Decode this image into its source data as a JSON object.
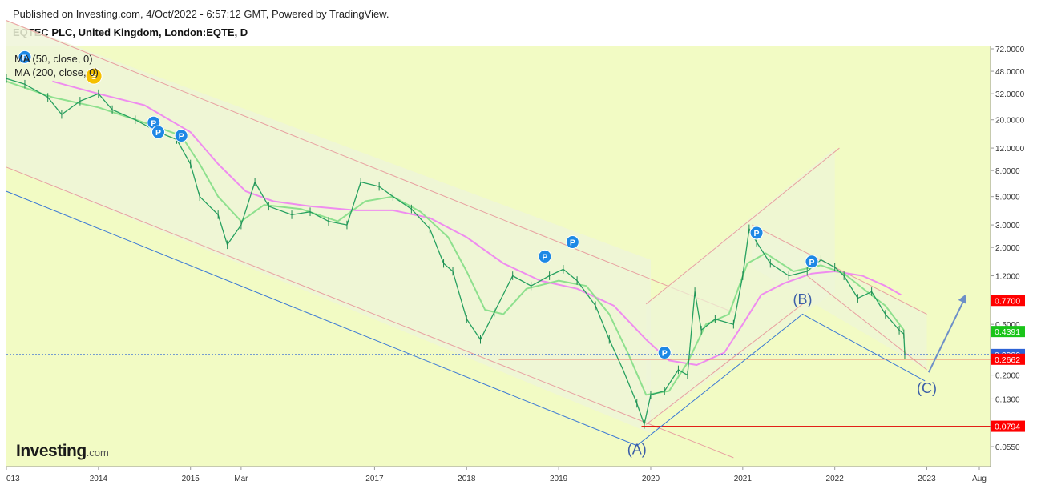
{
  "header": {
    "published": "Published on Investing.com, 4/Oct/2022 - 6:57:12 GMT, Powered by TradingView.",
    "title": "EQTEC PLC, United Kingdom, London:EQTE, D"
  },
  "logo": {
    "main": "Investing",
    "suffix": ".com"
  },
  "indicators": [
    "MA (50, close, 0)",
    "MA (200, close, 0)"
  ],
  "chart_data": {
    "type": "line",
    "scale": "log",
    "ylim": [
      0.045,
      75
    ],
    "x_ticks": [
      {
        "t": 2013.0,
        "label": "013"
      },
      {
        "t": 2014.0,
        "label": "2014"
      },
      {
        "t": 2015.0,
        "label": "2015"
      },
      {
        "t": 2015.55,
        "label": "Mar"
      },
      {
        "t": 2017.0,
        "label": "2017"
      },
      {
        "t": 2018.0,
        "label": "2018"
      },
      {
        "t": 2019.0,
        "label": "2019"
      },
      {
        "t": 2020.0,
        "label": "2020"
      },
      {
        "t": 2021.0,
        "label": "2021"
      },
      {
        "t": 2022.0,
        "label": "2022"
      },
      {
        "t": 2023.0,
        "label": "2023"
      },
      {
        "t": 2023.57,
        "label": "Aug"
      }
    ],
    "y_ticks": [
      {
        "v": 72,
        "label": "72.0000"
      },
      {
        "v": 48,
        "label": "48.0000"
      },
      {
        "v": 32,
        "label": "32.0000"
      },
      {
        "v": 20,
        "label": "20.0000"
      },
      {
        "v": 12,
        "label": "12.0000"
      },
      {
        "v": 8,
        "label": "8.0000"
      },
      {
        "v": 5,
        "label": "5.0000"
      },
      {
        "v": 3,
        "label": "3.0000"
      },
      {
        "v": 2,
        "label": "2.0000"
      },
      {
        "v": 1.2,
        "label": "1.2000"
      },
      {
        "v": 0.5,
        "label": "0.5000"
      },
      {
        "v": 0.2,
        "label": "0.2000"
      },
      {
        "v": 0.13,
        "label": "0.1300"
      },
      {
        "v": 0.055,
        "label": "0.0550"
      }
    ],
    "price_tags": [
      {
        "v": 0.77,
        "label": "0.7700",
        "color": "#ff0000"
      },
      {
        "v": 0.4391,
        "label": "0.4391",
        "color": "#19c419"
      },
      {
        "v": 0.29,
        "label": "0.2900",
        "color": "#2d63d6"
      },
      {
        "v": 0.2662,
        "label": "0.2662",
        "color": "#ff0000"
      },
      {
        "v": 0.0794,
        "label": "0.0794",
        "color": "#ff0000"
      }
    ],
    "series": [
      {
        "name": "price",
        "color": "#27a160",
        "points": [
          [
            2013.0,
            42
          ],
          [
            2013.2,
            38
          ],
          [
            2013.45,
            30
          ],
          [
            2013.6,
            22
          ],
          [
            2013.8,
            28
          ],
          [
            2014.0,
            32
          ],
          [
            2014.15,
            24
          ],
          [
            2014.4,
            20
          ],
          [
            2014.65,
            16
          ],
          [
            2014.85,
            14
          ],
          [
            2015.0,
            9
          ],
          [
            2015.1,
            5
          ],
          [
            2015.3,
            3.6
          ],
          [
            2015.4,
            2.1
          ],
          [
            2015.55,
            3.0
          ],
          [
            2015.7,
            6.5
          ],
          [
            2015.85,
            4.2
          ],
          [
            2016.1,
            3.6
          ],
          [
            2016.3,
            3.8
          ],
          [
            2016.5,
            3.2
          ],
          [
            2016.7,
            3.0
          ],
          [
            2016.85,
            6.5
          ],
          [
            2017.05,
            6.0
          ],
          [
            2017.2,
            5.0
          ],
          [
            2017.4,
            4.0
          ],
          [
            2017.6,
            2.8
          ],
          [
            2017.75,
            1.5
          ],
          [
            2017.85,
            1.3
          ],
          [
            2018.0,
            0.55
          ],
          [
            2018.15,
            0.38
          ],
          [
            2018.3,
            0.62
          ],
          [
            2018.5,
            1.2
          ],
          [
            2018.7,
            1.0
          ],
          [
            2018.9,
            1.2
          ],
          [
            2019.05,
            1.35
          ],
          [
            2019.2,
            1.1
          ],
          [
            2019.4,
            0.7
          ],
          [
            2019.55,
            0.38
          ],
          [
            2019.7,
            0.22
          ],
          [
            2019.85,
            0.12
          ],
          [
            2019.93,
            0.082
          ],
          [
            2020.0,
            0.14
          ],
          [
            2020.15,
            0.15
          ],
          [
            2020.3,
            0.22
          ],
          [
            2020.4,
            0.2
          ],
          [
            2020.48,
            0.9
          ],
          [
            2020.55,
            0.45
          ],
          [
            2020.7,
            0.55
          ],
          [
            2020.9,
            0.5
          ],
          [
            2021.0,
            1.2
          ],
          [
            2021.07,
            2.8
          ],
          [
            2021.15,
            2.2
          ],
          [
            2021.3,
            1.5
          ],
          [
            2021.5,
            1.2
          ],
          [
            2021.7,
            1.3
          ],
          [
            2021.85,
            1.6
          ],
          [
            2022.0,
            1.4
          ],
          [
            2022.1,
            1.2
          ],
          [
            2022.25,
            0.8
          ],
          [
            2022.4,
            0.9
          ],
          [
            2022.55,
            0.6
          ],
          [
            2022.7,
            0.45
          ],
          [
            2022.75,
            0.42
          ],
          [
            2022.76,
            0.29
          ]
        ]
      },
      {
        "name": "MA (50, close, 0)",
        "color": "#8ee08e",
        "points": [
          [
            2013.0,
            40
          ],
          [
            2013.5,
            30
          ],
          [
            2014.0,
            25
          ],
          [
            2014.5,
            19
          ],
          [
            2014.9,
            15
          ],
          [
            2015.1,
            9
          ],
          [
            2015.3,
            5
          ],
          [
            2015.55,
            3.2
          ],
          [
            2015.8,
            4.3
          ],
          [
            2016.2,
            4.0
          ],
          [
            2016.6,
            3.2
          ],
          [
            2016.9,
            4.6
          ],
          [
            2017.2,
            5.0
          ],
          [
            2017.5,
            3.8
          ],
          [
            2017.8,
            2.4
          ],
          [
            2018.0,
            1.3
          ],
          [
            2018.2,
            0.65
          ],
          [
            2018.4,
            0.6
          ],
          [
            2018.65,
            0.95
          ],
          [
            2019.0,
            1.1
          ],
          [
            2019.3,
            1.0
          ],
          [
            2019.55,
            0.6
          ],
          [
            2019.75,
            0.3
          ],
          [
            2019.95,
            0.14
          ],
          [
            2020.2,
            0.15
          ],
          [
            2020.4,
            0.25
          ],
          [
            2020.6,
            0.5
          ],
          [
            2020.85,
            0.6
          ],
          [
            2021.05,
            1.5
          ],
          [
            2021.25,
            1.8
          ],
          [
            2021.55,
            1.3
          ],
          [
            2021.85,
            1.45
          ],
          [
            2022.1,
            1.25
          ],
          [
            2022.35,
            0.9
          ],
          [
            2022.55,
            0.7
          ],
          [
            2022.75,
            0.45
          ]
        ]
      },
      {
        "name": "MA (200, close, 0)",
        "color": "#ef8cef",
        "points": [
          [
            2013.5,
            40
          ],
          [
            2014.0,
            32
          ],
          [
            2014.5,
            26
          ],
          [
            2015.0,
            16
          ],
          [
            2015.3,
            9
          ],
          [
            2015.6,
            5.5
          ],
          [
            2015.9,
            4.6
          ],
          [
            2016.3,
            4.2
          ],
          [
            2016.8,
            3.9
          ],
          [
            2017.2,
            3.9
          ],
          [
            2017.6,
            3.4
          ],
          [
            2018.0,
            2.4
          ],
          [
            2018.4,
            1.5
          ],
          [
            2018.8,
            1.1
          ],
          [
            2019.2,
            0.95
          ],
          [
            2019.6,
            0.7
          ],
          [
            2019.95,
            0.38
          ],
          [
            2020.2,
            0.26
          ],
          [
            2020.5,
            0.24
          ],
          [
            2020.8,
            0.3
          ],
          [
            2021.0,
            0.5
          ],
          [
            2021.2,
            0.85
          ],
          [
            2021.45,
            1.05
          ],
          [
            2021.75,
            1.25
          ],
          [
            2022.0,
            1.3
          ],
          [
            2022.3,
            1.2
          ],
          [
            2022.55,
            1.0
          ],
          [
            2022.72,
            0.85
          ]
        ]
      }
    ],
    "wave_labels": [
      {
        "t": 2019.85,
        "v": 0.048,
        "label": "(A)"
      },
      {
        "t": 2021.65,
        "v": 0.72,
        "label": "(B)"
      },
      {
        "t": 2023.0,
        "v": 0.145,
        "label": "(C)"
      }
    ],
    "markers": [
      "P",
      "P",
      "P",
      "P",
      "P",
      "P",
      "P",
      "P",
      "P",
      "S"
    ]
  }
}
